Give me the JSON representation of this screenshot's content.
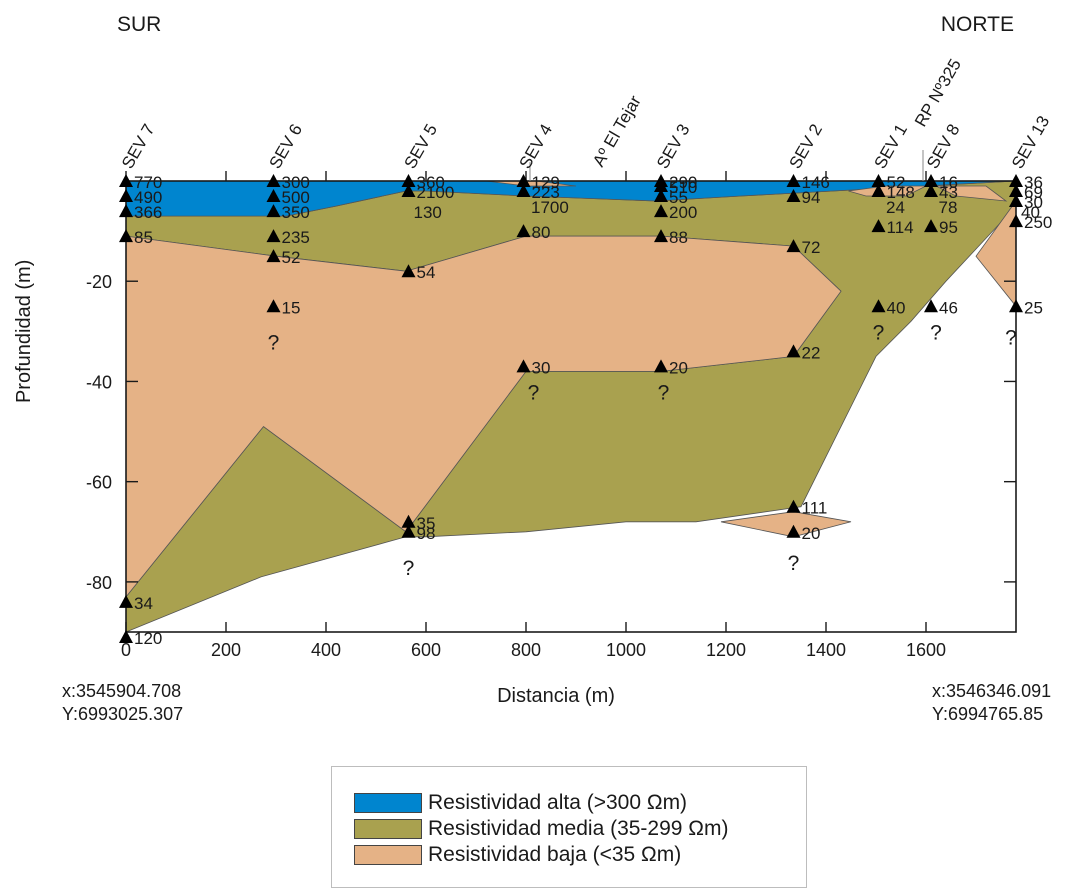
{
  "chart_data": {
    "type": "area",
    "ylabel": "Profundidad (m)",
    "xlabel": "Distancia (m)",
    "xlim": [
      0,
      1780
    ],
    "ylim": [
      -90,
      0
    ],
    "x_ticks": [
      "0",
      "200",
      "400",
      "600",
      "800",
      "1000",
      "1200",
      "1400",
      "1600"
    ],
    "y_ticks": [
      "-20",
      "-40",
      "-60",
      "-80"
    ],
    "direction_labels": {
      "left": "SUR",
      "right": "NORTE"
    },
    "coordinates": {
      "left": [
        "x:3545904.708",
        "Y:6993025.307"
      ],
      "right": [
        "x:3546346.091",
        "Y:6994765.85"
      ]
    },
    "reference_labels": [
      {
        "text": "Aº El Tejar",
        "x": 1000
      },
      {
        "text": "RP Nº325",
        "x": 1600
      }
    ],
    "soundings": [
      {
        "name": "SEV 7",
        "x": 0,
        "points": [
          {
            "depth": 0,
            "value": "770"
          },
          {
            "depth": -3,
            "value": "490"
          },
          {
            "depth": -6,
            "value": "366"
          },
          {
            "depth": -11,
            "value": "85"
          },
          {
            "depth": -84,
            "value": "34"
          },
          {
            "depth": -91,
            "value": "120"
          }
        ]
      },
      {
        "name": "SEV 6",
        "x": 295,
        "points": [
          {
            "depth": 0,
            "value": "300"
          },
          {
            "depth": -3,
            "value": "500"
          },
          {
            "depth": -6,
            "value": "350"
          },
          {
            "depth": -11,
            "value": "235"
          },
          {
            "depth": -15,
            "value": "52"
          },
          {
            "depth": -25,
            "value": "15"
          }
        ]
      },
      {
        "name": "SEV 5",
        "x": 565,
        "points": [
          {
            "depth": 0,
            "value": "360"
          },
          {
            "depth": -2,
            "value": "2100"
          },
          {
            "depth": -18,
            "value": "54"
          },
          {
            "depth": -68,
            "value": "35"
          },
          {
            "depth": -70,
            "value": "98"
          }
        ]
      },
      {
        "name": "SEV 4",
        "x": 795,
        "points": [
          {
            "depth": 0,
            "value": "129"
          },
          {
            "depth": -2,
            "value": "223"
          },
          {
            "depth": -10,
            "value": "80"
          },
          {
            "depth": -37,
            "value": "30"
          }
        ]
      },
      {
        "name": "SEV 3",
        "x": 1070,
        "points": [
          {
            "depth": 0,
            "value": "290"
          },
          {
            "depth": -1,
            "value": "510"
          },
          {
            "depth": -3,
            "value": "55"
          },
          {
            "depth": -6,
            "value": "200"
          },
          {
            "depth": -11,
            "value": "88"
          },
          {
            "depth": -37,
            "value": "20"
          }
        ]
      },
      {
        "name": "SEV 2",
        "x": 1335,
        "points": [
          {
            "depth": 0,
            "value": "146"
          },
          {
            "depth": -3,
            "value": "94"
          },
          {
            "depth": -13,
            "value": "72"
          },
          {
            "depth": -34,
            "value": "22"
          },
          {
            "depth": -65,
            "value": "111"
          },
          {
            "depth": -70,
            "value": "20"
          }
        ]
      },
      {
        "name": "SEV 1",
        "x": 1505,
        "points": [
          {
            "depth": 0,
            "value": "52"
          },
          {
            "depth": -2,
            "value": "148"
          },
          {
            "depth": -9,
            "value": "114"
          },
          {
            "depth": -25,
            "value": "40"
          }
        ]
      },
      {
        "name": "SEV 8",
        "x": 1610,
        "points": [
          {
            "depth": 0,
            "value": "16"
          },
          {
            "depth": -2,
            "value": "43"
          },
          {
            "depth": -9,
            "value": "95"
          },
          {
            "depth": -25,
            "value": "46"
          }
        ]
      },
      {
        "name": "SEV 13",
        "x": 1780,
        "points": [
          {
            "depth": 0,
            "value": "36"
          },
          {
            "depth": -2,
            "value": "69"
          },
          {
            "depth": -4,
            "value": "30"
          },
          {
            "depth": -8,
            "value": "250"
          },
          {
            "depth": -25,
            "value": "25"
          }
        ]
      }
    ],
    "extra_labels": [
      {
        "text": "24",
        "x": 1520,
        "depth": -5
      },
      {
        "text": "78",
        "x": 1625,
        "depth": -5
      },
      {
        "text": "40",
        "x": 1790,
        "depth": -6
      },
      {
        "text": "1700",
        "x": 810,
        "depth": -5
      },
      {
        "text": "130",
        "x": 575,
        "depth": -6
      }
    ],
    "uncertainty_marks": [
      {
        "text": "?",
        "x": 295,
        "depth": -32
      },
      {
        "text": "?",
        "x": 565,
        "depth": -77
      },
      {
        "text": "?",
        "x": 815,
        "depth": -42
      },
      {
        "text": "?",
        "x": 1075,
        "depth": -42
      },
      {
        "text": "?",
        "x": 1335,
        "depth": -76
      },
      {
        "text": "?",
        "x": 1505,
        "depth": -30
      },
      {
        "text": "?",
        "x": 1620,
        "depth": -30
      },
      {
        "text": "?",
        "x": 1770,
        "depth": -31
      }
    ],
    "layers": [
      {
        "name": "Resistividad alta (>300 Ωm)",
        "color": "#0085cf",
        "polygon": [
          [
            0,
            0
          ],
          [
            1780,
            0
          ],
          [
            1230,
            -3
          ],
          [
            1060,
            -4
          ],
          [
            800,
            -3
          ],
          [
            600,
            -2
          ],
          [
            560,
            -2
          ],
          [
            420,
            -5
          ],
          [
            320,
            -7
          ],
          [
            0,
            -7
          ]
        ]
      },
      {
        "name": "Resistividad media (35-299 Ωm)",
        "color": "#a9a14f",
        "polygon": [
          [
            0,
            -7
          ],
          [
            320,
            -7
          ],
          [
            420,
            -5
          ],
          [
            560,
            -2
          ],
          [
            600,
            -2
          ],
          [
            800,
            -3
          ],
          [
            1060,
            -4
          ],
          [
            1230,
            -3
          ],
          [
            1780,
            0
          ],
          [
            1780,
            -5
          ],
          [
            1640,
            -20
          ],
          [
            1570,
            -28
          ],
          [
            1500,
            -35
          ],
          [
            1350,
            -65
          ],
          [
            1140,
            -68
          ],
          [
            1000,
            -68
          ],
          [
            800,
            -70
          ],
          [
            600,
            -71
          ],
          [
            560,
            -71
          ],
          [
            270,
            -79
          ],
          [
            0,
            -90
          ],
          [
            0,
            -83
          ],
          [
            0,
            -11
          ],
          [
            300,
            -15
          ],
          [
            560,
            -18
          ],
          [
            800,
            -11
          ],
          [
            1070,
            -11
          ],
          [
            1335,
            -13
          ],
          [
            1430,
            -22
          ],
          [
            1335,
            -35
          ],
          [
            1070,
            -38
          ],
          [
            800,
            -38
          ],
          [
            560,
            -70
          ],
          [
            275,
            -49
          ],
          [
            0,
            -83
          ],
          [
            0,
            -11
          ]
        ]
      },
      {
        "name": "Resistividad baja (<35 Ωm)",
        "color": "#e5b286",
        "polygon": [
          [
            0,
            -11
          ],
          [
            300,
            -15
          ],
          [
            560,
            -18
          ],
          [
            800,
            -11
          ],
          [
            1070,
            -11
          ],
          [
            1335,
            -13
          ],
          [
            1430,
            -22
          ],
          [
            1335,
            -35
          ],
          [
            1070,
            -38
          ],
          [
            800,
            -38
          ],
          [
            560,
            -70
          ],
          [
            275,
            -49
          ],
          [
            0,
            -83
          ]
        ]
      }
    ],
    "legend": {
      "position": "bottom-center",
      "items": [
        {
          "label": "Resistividad alta (>300 Ωm)",
          "color": "#0085cf"
        },
        {
          "label": "Resistividad media (35-299 Ωm)",
          "color": "#a9a14f"
        },
        {
          "label": "Resistividad baja (<35 Ωm)",
          "color": "#e5b286"
        }
      ]
    }
  }
}
